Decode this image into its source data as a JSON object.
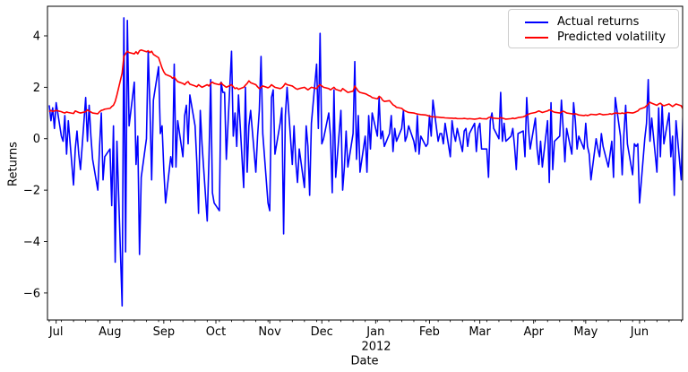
{
  "figure": {
    "background_color": "#ffffff",
    "accent_blue": "#0000ff",
    "accent_red": "#ff0000",
    "frame_color": "#000000"
  },
  "axes": {
    "xlabel": "Date",
    "ylabel": "Returns",
    "x_year_label": "2012",
    "yticks": [
      4,
      2,
      0,
      -2,
      -4,
      -6
    ],
    "x_tick_labels": [
      "Jul",
      "Aug",
      "Sep",
      "Oct",
      "Nov",
      "Dec",
      "Jan",
      "Feb",
      "Mar",
      "Apr",
      "May",
      "Jun"
    ]
  },
  "legend": {
    "position": "upper right",
    "items": [
      {
        "label": "Actual returns",
        "color": "#0000ff"
      },
      {
        "label": "Predicted volatility",
        "color": "#ff0000"
      }
    ]
  },
  "chart_data": {
    "type": "line",
    "title": "",
    "xlabel": "Date",
    "ylabel": "Returns",
    "ylim": [
      -7.05,
      5.15
    ],
    "grid": false,
    "legend_position": "upper right",
    "x_start_date": "2011-06-27",
    "x_end_date": "2012-06-26",
    "x_frequency": "business-daily",
    "x_tick_labels": [
      "Jul",
      "Aug",
      "Sep",
      "Oct",
      "Nov",
      "Dec",
      "Jan",
      "Feb",
      "Mar",
      "Apr",
      "May",
      "Jun"
    ],
    "x_year_label": "2012",
    "series": [
      {
        "name": "Actual returns",
        "color": "#0000ff",
        "values": [
          1.3,
          0.7,
          1.2,
          0.4,
          1.4,
          0.1,
          -0.1,
          0.9,
          -0.6,
          0.7,
          -1.8,
          -0.4,
          0.3,
          -0.6,
          -1.2,
          1.6,
          -0.1,
          1.3,
          0.1,
          -0.8,
          -2.0,
          -0.3,
          1.0,
          -1.6,
          -0.7,
          -0.4,
          -2.6,
          0.5,
          -4.8,
          -0.1,
          -6.5,
          4.7,
          -4.4,
          4.6,
          0.5,
          2.2,
          -1.0,
          0.1,
          -4.5,
          -1.5,
          0.0,
          3.4,
          1.3,
          -1.6,
          1.5,
          2.8,
          0.2,
          0.5,
          -1.2,
          -2.5,
          -0.7,
          -1.1,
          2.9,
          -1.1,
          0.7,
          -0.7,
          0.9,
          1.3,
          -0.2,
          1.7,
          0.5,
          -0.9,
          -2.9,
          1.1,
          -0.2,
          -3.2,
          -0.8,
          2.3,
          -2.1,
          -2.5,
          -2.8,
          2.2,
          1.8,
          1.8,
          -0.8,
          3.4,
          0.1,
          1.0,
          -0.3,
          1.7,
          -1.9,
          2.0,
          -1.3,
          0.5,
          1.1,
          -1.3,
          0.1,
          1.1,
          3.2,
          0.2,
          -2.5,
          -2.8,
          1.6,
          1.9,
          -0.6,
          0.6,
          1.2,
          -3.7,
          0.9,
          2.0,
          -1.0,
          0.5,
          -0.9,
          -1.7,
          -0.4,
          -1.9,
          0.5,
          -0.3,
          -2.2,
          0.6,
          2.9,
          0.4,
          4.1,
          -0.2,
          0.0,
          1.0,
          0.1,
          -2.1,
          1.9,
          -1.5,
          1.1,
          -2.0,
          -1.1,
          0.3,
          -1.1,
          0.2,
          3.0,
          -0.8,
          0.9,
          -1.3,
          0.1,
          -1.3,
          0.9,
          -0.4,
          1.0,
          0.1,
          1.6,
          0.0,
          0.3,
          -0.3,
          0.2,
          0.9,
          -0.5,
          0.4,
          -0.1,
          0.4,
          1.1,
          -0.1,
          0.1,
          0.5,
          -0.1,
          -0.5,
          0.9,
          -0.6,
          0.1,
          -0.3,
          -0.2,
          0.9,
          0.1,
          1.5,
          -0.1,
          0.2,
          0.2,
          -0.2,
          0.6,
          -0.7,
          0.7,
          0.2,
          -0.1,
          0.4,
          -0.5,
          0.3,
          0.4,
          -0.3,
          0.2,
          0.6,
          -0.5,
          0.4,
          0.6,
          -0.4,
          -0.4,
          -1.5,
          0.7,
          1.0,
          0.4,
          0.0,
          1.8,
          -0.1,
          0.6,
          -0.1,
          0.1,
          0.4,
          -0.3,
          -1.2,
          0.2,
          0.3,
          -0.7,
          1.6,
          0.4,
          -0.4,
          0.8,
          -0.4,
          -1.0,
          -0.1,
          -1.1,
          0.7,
          -1.7,
          1.4,
          -1.2,
          -0.1,
          0.1,
          1.5,
          0.4,
          -0.9,
          0.4,
          -0.6,
          1.4,
          0.7,
          -0.4,
          0.1,
          -0.4,
          0.6,
          -0.3,
          -0.6,
          -1.6,
          0.0,
          -0.4,
          -0.7,
          0.2,
          -0.3,
          -1.1,
          -0.6,
          -0.1,
          -1.5,
          1.6,
          0.1,
          -1.4,
          0.2,
          1.3,
          -0.2,
          -1.4,
          -0.2,
          -0.3,
          -0.2,
          -2.5,
          0.0,
          0.6,
          2.3,
          -0.1,
          0.8,
          -1.3,
          1.2,
          -0.7,
          1.3,
          -0.2,
          1.0,
          -0.7,
          0.1,
          -2.2,
          0.7,
          -1.6,
          1.0
        ]
      },
      {
        "name": "Predicted volatility",
        "color": "#ff0000",
        "values": [
          1.05,
          1.1,
          1.06,
          1.08,
          1.1,
          1.05,
          1.02,
          1.0,
          1.04,
          1.02,
          0.98,
          1.08,
          1.05,
          1.02,
          1.0,
          1.05,
          1.12,
          1.08,
          1.04,
          1.0,
          0.97,
          1.05,
          1.1,
          1.12,
          1.15,
          1.18,
          1.25,
          1.3,
          1.45,
          1.7,
          2.55,
          3.2,
          3.3,
          3.4,
          3.35,
          3.3,
          3.38,
          3.3,
          3.42,
          3.45,
          3.38,
          3.42,
          3.35,
          3.4,
          3.28,
          3.15,
          2.95,
          2.75,
          2.6,
          2.5,
          2.42,
          2.35,
          2.4,
          2.3,
          2.22,
          2.15,
          2.1,
          2.18,
          2.22,
          2.12,
          2.05,
          2.02,
          2.1,
          2.05,
          2.0,
          2.1,
          2.05,
          2.15,
          2.2,
          2.15,
          2.1,
          2.18,
          2.1,
          2.05,
          2.0,
          2.1,
          2.02,
          1.95,
          1.98,
          1.92,
          2.0,
          2.08,
          2.15,
          2.25,
          2.18,
          2.1,
          2.02,
          1.95,
          2.0,
          2.05,
          1.98,
          2.02,
          2.1,
          2.05,
          2.0,
          1.95,
          1.98,
          2.05,
          2.15,
          2.1,
          2.05,
          2.0,
          1.95,
          1.92,
          1.95,
          2.0,
          1.95,
          1.9,
          1.95,
          2.0,
          1.95,
          2.05,
          2.1,
          2.05,
          2.0,
          1.95,
          1.9,
          1.95,
          2.0,
          1.92,
          1.85,
          1.95,
          1.9,
          1.85,
          1.8,
          1.85,
          2.05,
          1.95,
          1.85,
          1.8,
          1.75,
          1.72,
          1.68,
          1.65,
          1.6,
          1.55,
          1.65,
          1.6,
          1.5,
          1.45,
          1.48,
          1.4,
          1.32,
          1.28,
          1.22,
          1.18,
          1.12,
          1.08,
          1.05,
          1.02,
          1.0,
          0.98,
          0.96,
          0.95,
          0.94,
          0.92,
          0.9,
          0.88,
          0.86,
          0.85,
          0.84,
          0.83,
          0.82,
          0.82,
          0.81,
          0.8,
          0.8,
          0.79,
          0.8,
          0.78,
          0.78,
          0.79,
          0.78,
          0.77,
          0.78,
          0.76,
          0.77,
          0.78,
          0.8,
          0.78,
          0.77,
          0.82,
          0.84,
          0.82,
          0.8,
          0.78,
          0.82,
          0.8,
          0.78,
          0.76,
          0.78,
          0.8,
          0.78,
          0.8,
          0.82,
          0.85,
          0.88,
          0.92,
          0.95,
          0.98,
          1.02,
          1.05,
          1.08,
          1.05,
          1.02,
          1.08,
          1.12,
          1.1,
          1.06,
          1.03,
          1.0,
          1.04,
          1.07,
          1.04,
          1.0,
          0.97,
          0.95,
          0.97,
          0.95,
          0.92,
          0.9,
          0.92,
          0.9,
          0.92,
          0.95,
          0.93,
          0.95,
          0.97,
          0.95,
          0.93,
          0.95,
          0.97,
          0.95,
          0.98,
          1.0,
          0.98,
          1.0,
          0.98,
          1.0,
          1.02,
          1.0,
          1.02,
          1.05,
          1.08,
          1.15,
          1.22,
          1.28,
          1.35,
          1.42,
          1.38,
          1.3,
          1.35,
          1.38,
          1.32,
          1.28,
          1.35,
          1.3,
          1.25,
          1.3,
          1.35,
          1.28,
          1.15
        ]
      }
    ]
  }
}
